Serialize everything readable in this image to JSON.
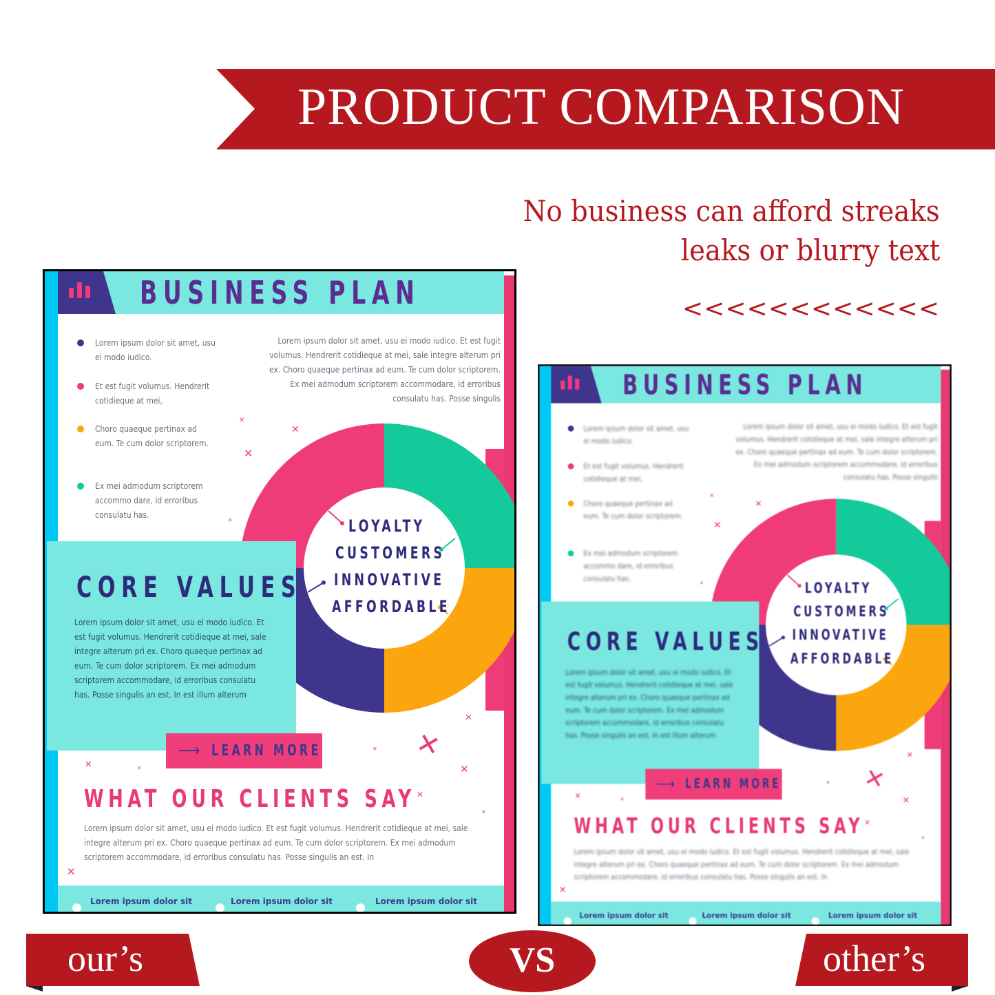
{
  "header": {
    "title": "PRODUCT COMPARISON",
    "subtitle_line1": "No business can afford streaks",
    "subtitle_line2": "leaks or blurry text",
    "arrows": "<<<<<<<<<<<<"
  },
  "compare": {
    "ours_label": "our’s",
    "others_label": "other’s",
    "vs_label": "VS"
  },
  "colors": {
    "brand_red": "#b5191f",
    "teal": "#7ae8e0",
    "pink": "#ef3b78",
    "green": "#14c99a",
    "orange": "#fca60f",
    "purple": "#3f358c",
    "cyan": "#00c8f5"
  },
  "flyer": {
    "title": "BUSINESS   PLAN",
    "header_icon": "bar-chart-icon",
    "bullets": [
      {
        "text": "Lorem ipsum dolor sit amet, usu ei modo iudico.",
        "color": "#3f358c"
      },
      {
        "text": "Et est fugit volumus. Hendrerit cotidieque at mei,",
        "color": "#ef3b78"
      },
      {
        "text": "Choro quaeque pertinax ad eum. Te cum dolor scriptorem.",
        "color": "#fca60f"
      },
      {
        "text": "Ex mei admodum scriptorem accommo dare, id erroribus consulatu has.",
        "color": "#14c99a"
      }
    ],
    "intro": "Lorem ipsum dolor sit amet, usu ei modo iudico. Et est fugit volumus. Hendrerit cotidieque at mei, sale integre alterum pri ex. Choro quaeque pertinax ad eum. Te cum dolor scriptorem. Ex mei admodum scriptorem accommodare, id erroribus consulatu has. Posse singulis",
    "donut_labels": [
      "LOYALTY",
      "CUSTOMERS",
      "INNOVATIVE",
      "AFFORDABLE"
    ],
    "core_title": "CORE VALUES",
    "core_text": "Lorem ipsum dolor sit amet, usu ei modo iudico. Et est fugit volumus. Hendrerit cotidieque at mei, sale integre alterum pri ex. Choro quaeque pertinax ad eum. Te cum dolor scriptorem. Ex mei admodum scriptorem accommodare, id erroribus consulatu has. Posse singulis an est. In est illum alterum",
    "learn_more": "LEARN MORE",
    "clients_title": "WHAT OUR CLIENTS SAY",
    "clients_text": "Lorem ipsum dolor sit amet, usu ei modo iudico. Et est fugit volumus. Hendrerit cotidieque at mei, sale integre alterum pri ex. Choro quaeque pertinax ad eum. Te cum dolor scriptorem. Ex mei admodum scriptorem accommodare, id erroribus consulatu has. Posse singulis an est. In",
    "footer_items": [
      "Lorem ipsum dolor sit",
      "Lorem ipsum dolor sit",
      "Lorem ipsum dolor sit"
    ]
  }
}
